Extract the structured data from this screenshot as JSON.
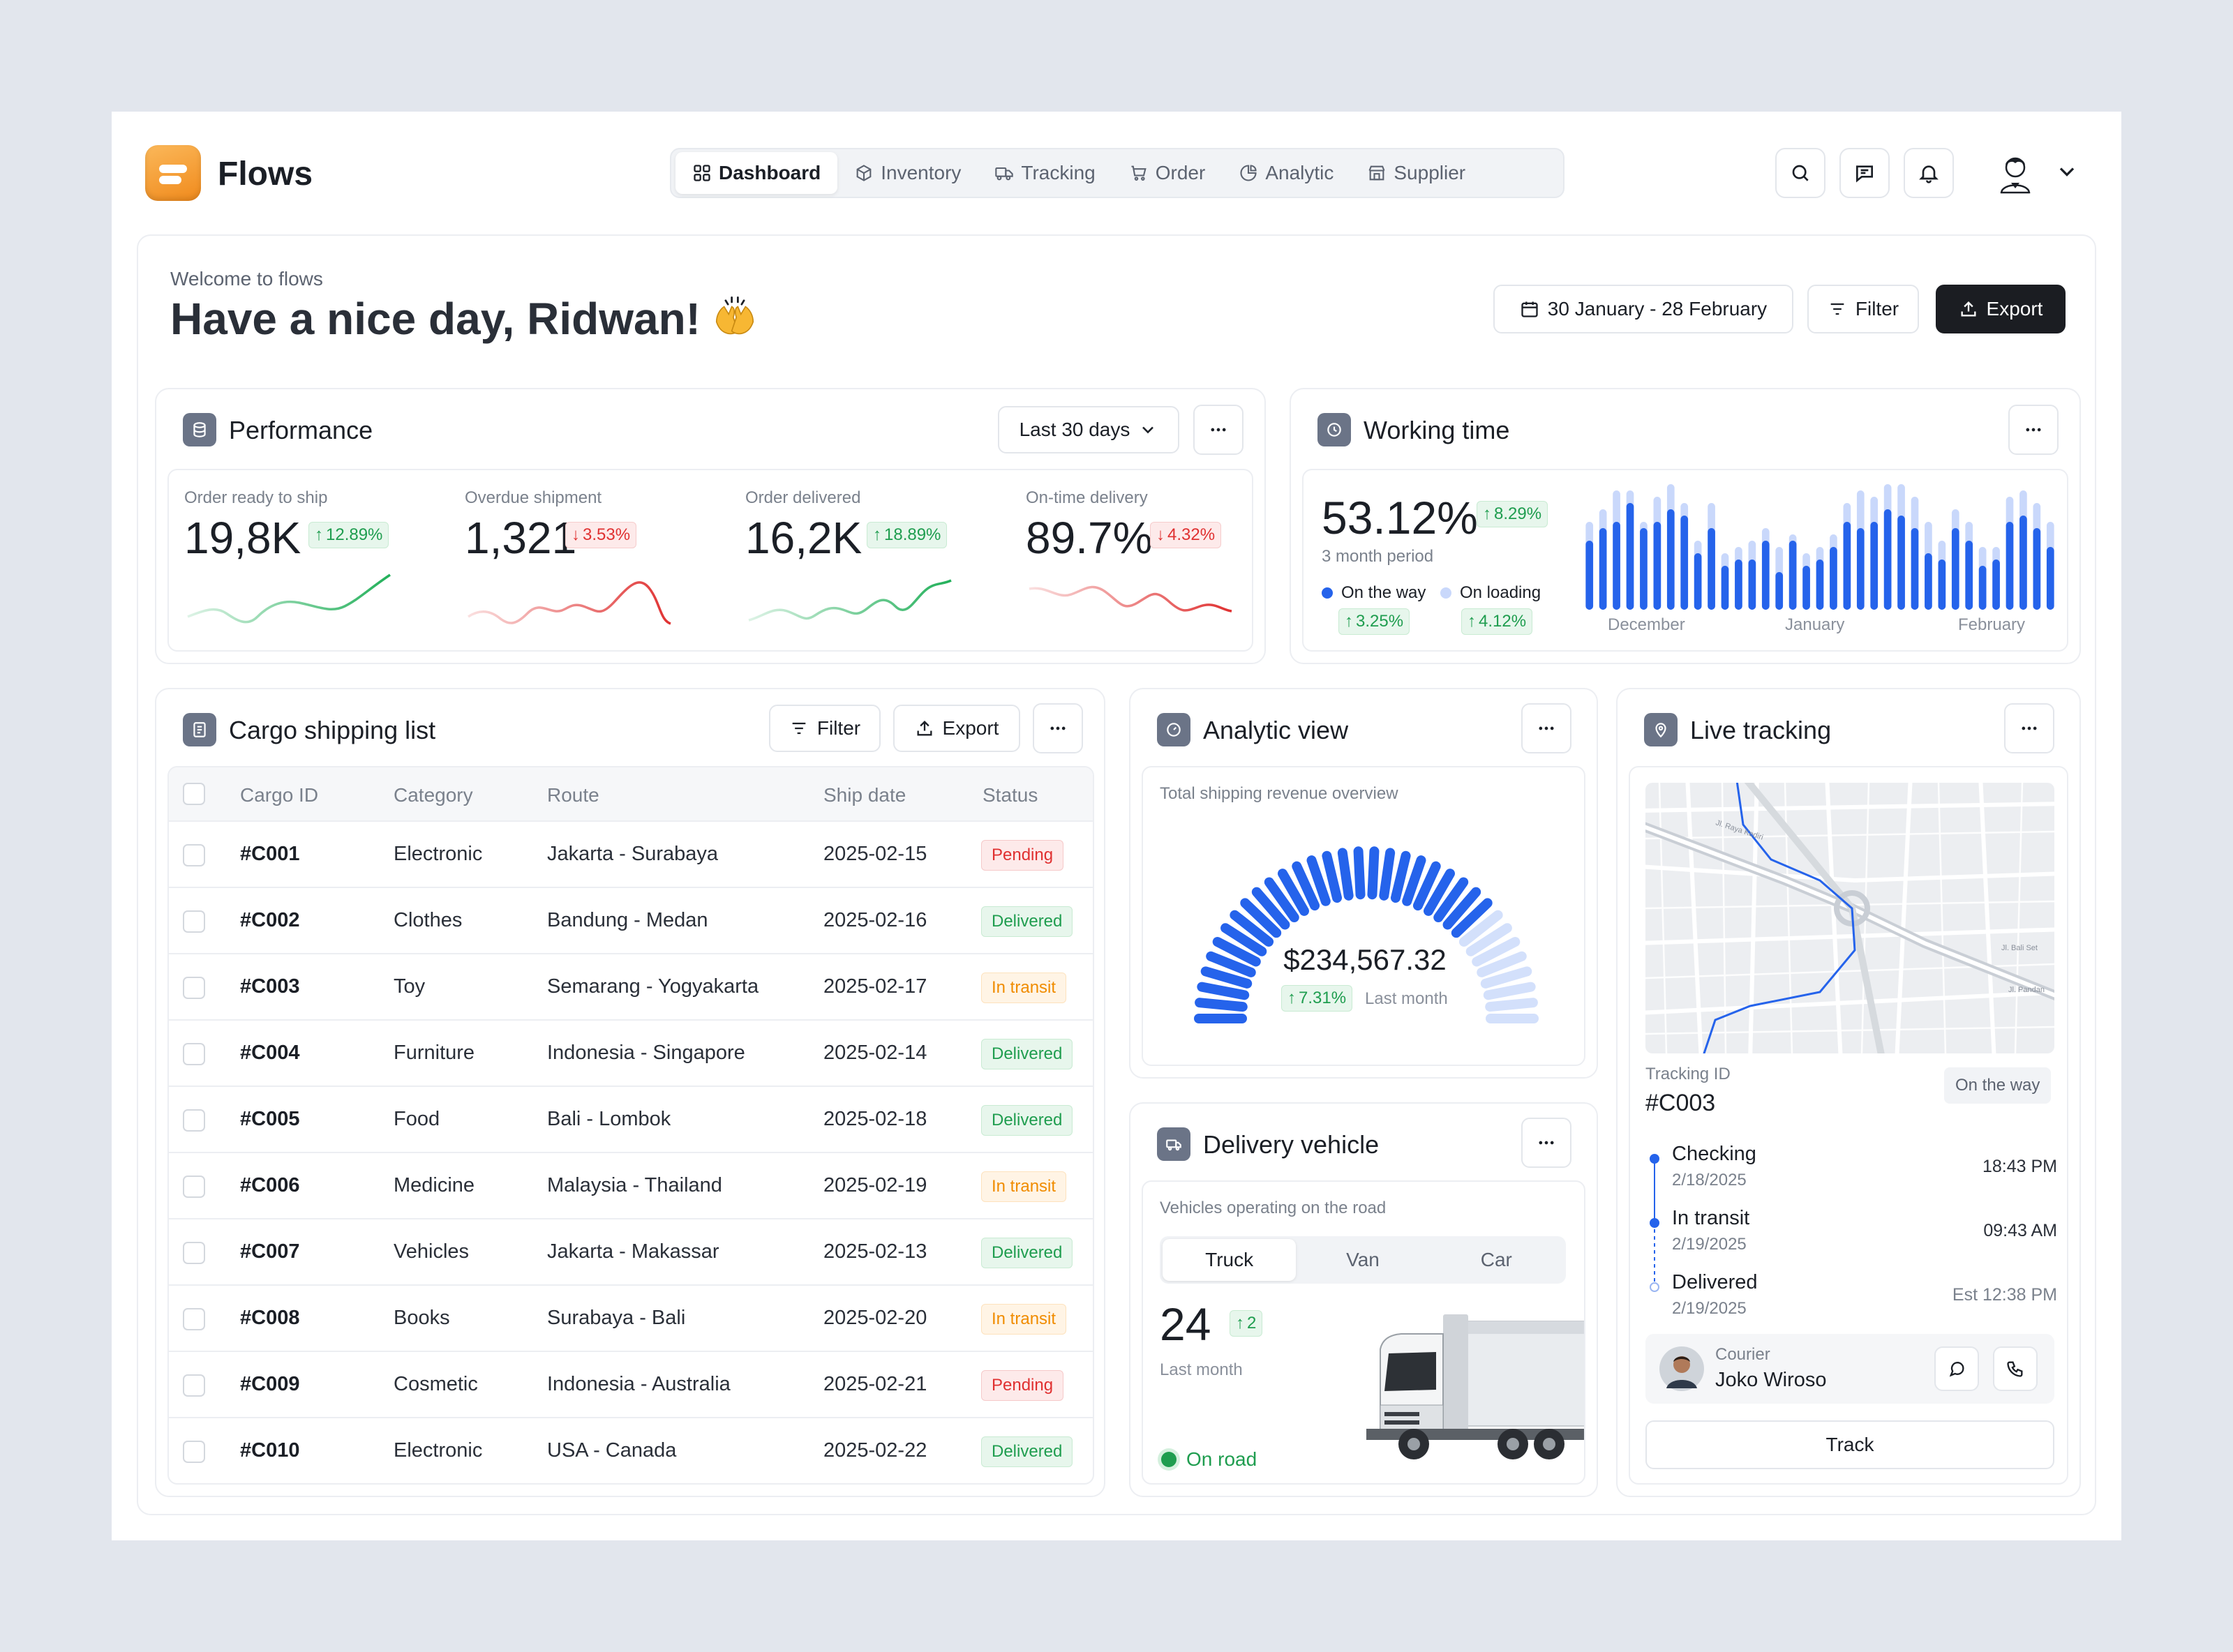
{
  "app": {
    "name": "Flows"
  },
  "nav": [
    {
      "label": "Dashboard",
      "icon": "grid-icon",
      "active": true
    },
    {
      "label": "Inventory",
      "icon": "box-icon"
    },
    {
      "label": "Tracking",
      "icon": "truck-icon"
    },
    {
      "label": "Order",
      "icon": "cart-icon"
    },
    {
      "label": "Analytic",
      "icon": "pie-icon"
    },
    {
      "label": "Supplier",
      "icon": "store-icon"
    }
  ],
  "header": {
    "welcome": "Welcome to flows",
    "greeting": "Have a nice day, Ridwan!",
    "date_range": "30 January - 28 February",
    "filter_label": "Filter",
    "export_label": "Export"
  },
  "performance": {
    "title": "Performance",
    "period": "Last 30 days",
    "metrics": [
      {
        "label": "Order ready to ship",
        "value": "19,8K",
        "change": "12.89%",
        "trend": "up"
      },
      {
        "label": "Overdue shipment",
        "value": "1,321",
        "change": "3.53%",
        "trend": "down"
      },
      {
        "label": "Order delivered",
        "value": "16,2K",
        "change": "18.89%",
        "trend": "up"
      },
      {
        "label": "On-time delivery",
        "value": "89.7%",
        "change": "4.32%",
        "trend": "down"
      }
    ]
  },
  "working_time": {
    "title": "Working time",
    "value": "53.12%",
    "change": "8.29%",
    "period": "3 month period",
    "legend": [
      {
        "label": "On the way",
        "change": "3.25%",
        "color": "#2563eb"
      },
      {
        "label": "On loading",
        "change": "4.12%",
        "color": "#c9d8fb"
      }
    ],
    "months": [
      "December",
      "January",
      "February"
    ]
  },
  "chart_data": {
    "type": "bar",
    "series": [
      {
        "name": "On the way",
        "values": [
          55,
          65,
          70,
          85,
          65,
          70,
          80,
          75,
          45,
          65,
          35,
          40,
          40,
          55,
          30,
          55,
          35,
          40,
          50,
          70,
          65,
          70,
          80,
          75,
          65,
          45,
          40,
          65,
          55,
          35,
          40,
          70,
          75,
          65,
          50
        ]
      },
      {
        "name": "On loading",
        "values": [
          70,
          80,
          95,
          95,
          70,
          90,
          100,
          85,
          55,
          85,
          45,
          50,
          55,
          65,
          50,
          60,
          45,
          50,
          60,
          85,
          95,
          90,
          100,
          100,
          90,
          70,
          55,
          80,
          70,
          50,
          50,
          90,
          95,
          85,
          70
        ]
      }
    ]
  },
  "cargo": {
    "title": "Cargo shipping list",
    "filter_label": "Filter",
    "export_label": "Export",
    "columns": [
      "Cargo ID",
      "Category",
      "Route",
      "Ship date",
      "Status"
    ],
    "rows": [
      {
        "id": "#C001",
        "category": "Electronic",
        "route": "Jakarta - Surabaya",
        "date": "2025-02-15",
        "status": "Pending"
      },
      {
        "id": "#C002",
        "category": "Clothes",
        "route": "Bandung - Medan",
        "date": "2025-02-16",
        "status": "Delivered"
      },
      {
        "id": "#C003",
        "category": "Toy",
        "route": "Semarang - Yogyakarta",
        "date": "2025-02-17",
        "status": "In transit"
      },
      {
        "id": "#C004",
        "category": "Furniture",
        "route": "Indonesia - Singapore",
        "date": "2025-02-14",
        "status": "Delivered"
      },
      {
        "id": "#C005",
        "category": "Food",
        "route": "Bali - Lombok",
        "date": "2025-02-18",
        "status": "Delivered"
      },
      {
        "id": "#C006",
        "category": "Medicine",
        "route": "Malaysia - Thailand",
        "date": "2025-02-19",
        "status": "In transit"
      },
      {
        "id": "#C007",
        "category": "Vehicles",
        "route": "Jakarta - Makassar",
        "date": "2025-02-13",
        "status": "Delivered"
      },
      {
        "id": "#C008",
        "category": "Books",
        "route": "Surabaya - Bali",
        "date": "2025-02-20",
        "status": "In transit"
      },
      {
        "id": "#C009",
        "category": "Cosmetic",
        "route": "Indonesia - Australia",
        "date": "2025-02-21",
        "status": "Pending"
      },
      {
        "id": "#C010",
        "category": "Electronic",
        "route": "USA - Canada",
        "date": "2025-02-22",
        "status": "Delivered"
      }
    ]
  },
  "analytic": {
    "title": "Analytic view",
    "subtitle": "Total shipping revenue overview",
    "value": "$234,567.32",
    "change": "7.31%",
    "change_label": "Last month",
    "fill_fraction": 0.75
  },
  "vehicle": {
    "title": "Delivery vehicle",
    "subtitle": "Vehicles operating on the road",
    "tabs": [
      "Truck",
      "Van",
      "Car"
    ],
    "active_tab": "Truck",
    "count": "24",
    "change": "2",
    "period": "Last month",
    "status": "On road"
  },
  "tracking": {
    "title": "Live tracking",
    "id_label": "Tracking ID",
    "id": "#C003",
    "status": "On the way",
    "steps": [
      {
        "title": "Checking",
        "date": "2/18/2025",
        "time": "18:43 PM"
      },
      {
        "title": "In transit",
        "date": "2/19/2025",
        "time": "09:43 AM"
      },
      {
        "title": "Delivered",
        "date": "2/19/2025",
        "time": "Est 12:38 PM"
      }
    ],
    "courier_label": "Courier",
    "courier_name": "Joko Wiroso",
    "track_label": "Track",
    "map_labels": [
      "Jl. Raya Kediri",
      "Jl. Pandan",
      "Jl. Bali Set"
    ]
  }
}
